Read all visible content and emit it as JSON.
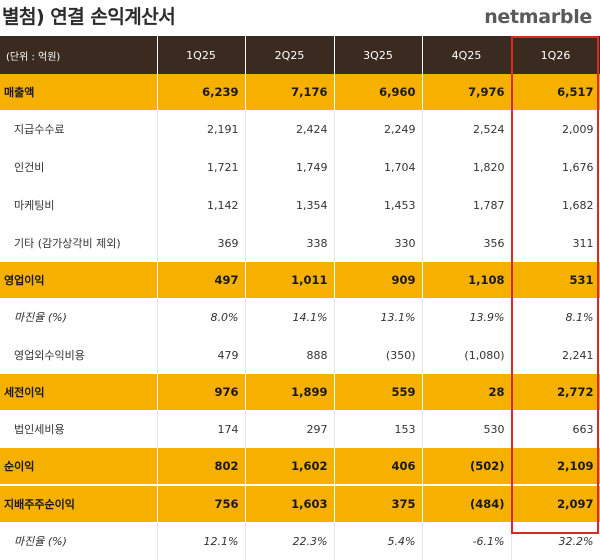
{
  "title": "별첨) 연결 손익계산서",
  "brand": "netmarble",
  "table": {
    "unit_label": "(단위 : 억원)",
    "columns": [
      "1Q25",
      "2Q25",
      "3Q25",
      "4Q25",
      "1Q26"
    ],
    "rows": [
      {
        "label": "매출액",
        "type": "hl",
        "values": [
          "6,239",
          "7,176",
          "6,960",
          "7,976",
          "6,517"
        ],
        "neg": [
          false,
          false,
          false,
          false,
          false
        ]
      },
      {
        "label": "지급수수료",
        "type": "sub",
        "values": [
          "2,191",
          "2,424",
          "2,249",
          "2,524",
          "2,009"
        ],
        "neg": [
          false,
          false,
          false,
          false,
          false
        ]
      },
      {
        "label": "인건비",
        "type": "sub",
        "values": [
          "1,721",
          "1,749",
          "1,704",
          "1,820",
          "1,676"
        ],
        "neg": [
          false,
          false,
          false,
          false,
          false
        ]
      },
      {
        "label": "마케팅비",
        "type": "sub",
        "values": [
          "1,142",
          "1,354",
          "1,453",
          "1,787",
          "1,682"
        ],
        "neg": [
          false,
          false,
          false,
          false,
          false
        ]
      },
      {
        "label": "기타 (감가상각비 제외)",
        "type": "sub",
        "values": [
          "369",
          "338",
          "330",
          "356",
          "311"
        ],
        "neg": [
          false,
          false,
          false,
          false,
          false
        ]
      },
      {
        "label": "영업이익",
        "type": "hl",
        "values": [
          "497",
          "1,011",
          "909",
          "1,108",
          "531"
        ],
        "neg": [
          false,
          false,
          false,
          false,
          false
        ]
      },
      {
        "label": "마진율 (%)",
        "type": "sub italic",
        "values": [
          "8.0%",
          "14.1%",
          "13.1%",
          "13.9%",
          "8.1%"
        ],
        "neg": [
          false,
          false,
          false,
          false,
          false
        ]
      },
      {
        "label": "영업외수익비용",
        "type": "sub",
        "values": [
          "479",
          "888",
          "(350)",
          "(1,080)",
          "2,241"
        ],
        "neg": [
          false,
          false,
          true,
          true,
          false
        ]
      },
      {
        "label": "세전이익",
        "type": "hl",
        "values": [
          "976",
          "1,899",
          "559",
          "28",
          "2,772"
        ],
        "neg": [
          false,
          false,
          false,
          false,
          false
        ]
      },
      {
        "label": "법인세비용",
        "type": "sub",
        "values": [
          "174",
          "297",
          "153",
          "530",
          "663"
        ],
        "neg": [
          false,
          false,
          false,
          false,
          false
        ]
      },
      {
        "label": "순이익",
        "type": "hl",
        "values": [
          "802",
          "1,602",
          "406",
          "(502)",
          "2,109"
        ],
        "neg": [
          false,
          false,
          false,
          true,
          false
        ]
      },
      {
        "label": "지배주주순이익",
        "type": "hl",
        "values": [
          "756",
          "1,603",
          "375",
          "(484)",
          "2,097"
        ],
        "neg": [
          false,
          false,
          false,
          true,
          false
        ]
      },
      {
        "label": "마진율 (%)",
        "type": "sub italic",
        "values": [
          "12.1%",
          "22.3%",
          "5.4%",
          "-6.1%",
          "32.2%"
        ],
        "neg": [
          false,
          false,
          false,
          false,
          false
        ]
      }
    ]
  },
  "colors": {
    "header_bg": "#3a2a1f",
    "highlight": "#f5b000",
    "negative": "#e0271f",
    "focus_box": "#e0271f"
  }
}
